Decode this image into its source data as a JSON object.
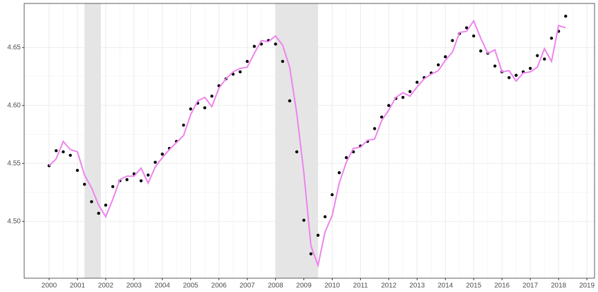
{
  "chart_data": {
    "type": "scatter",
    "x": [
      2000,
      2000.25,
      2000.5,
      2000.75,
      2001,
      2001.25,
      2001.5,
      2001.75,
      2002,
      2002.25,
      2002.5,
      2002.75,
      2003,
      2003.25,
      2003.5,
      2003.75,
      2004,
      2004.25,
      2004.5,
      2004.75,
      2005,
      2005.25,
      2005.5,
      2005.75,
      2006,
      2006.25,
      2006.5,
      2006.75,
      2007,
      2007.25,
      2007.5,
      2007.75,
      2008,
      2008.25,
      2008.5,
      2008.75,
      2009,
      2009.25,
      2009.5,
      2009.75,
      2010,
      2010.25,
      2010.5,
      2010.75,
      2011,
      2011.25,
      2011.5,
      2011.75,
      2012,
      2012.25,
      2012.5,
      2012.75,
      2013,
      2013.25,
      2013.5,
      2013.75,
      2014,
      2014.25,
      2014.5,
      2014.75,
      2015,
      2015.25,
      2015.5,
      2015.75,
      2016,
      2016.25,
      2016.5,
      2016.75,
      2017,
      2017.25,
      2017.5,
      2017.75,
      2018,
      2018.25
    ],
    "series": [
      {
        "type": "scatter",
        "color": "#000000",
        "values": [
          4.548,
          4.561,
          4.56,
          4.557,
          4.544,
          4.532,
          4.517,
          4.507,
          4.514,
          4.53,
          4.535,
          4.536,
          4.541,
          4.535,
          4.54,
          4.551,
          4.558,
          4.563,
          4.569,
          4.583,
          4.597,
          4.602,
          4.598,
          4.608,
          4.617,
          4.623,
          4.627,
          4.629,
          4.638,
          4.651,
          4.653,
          4.656,
          4.653,
          4.638,
          4.604,
          4.56,
          4.501,
          4.472,
          4.488,
          4.504,
          4.523,
          4.542,
          4.555,
          4.56,
          4.565,
          4.569,
          4.58,
          4.59,
          4.6,
          4.606,
          4.607,
          4.612,
          4.62,
          4.624,
          4.628,
          4.635,
          4.642,
          4.656,
          4.662,
          4.667,
          4.66,
          4.647,
          4.645,
          4.634,
          4.629,
          4.624,
          4.626,
          4.629,
          4.632,
          4.643,
          4.64,
          4.658,
          4.664,
          4.677
        ]
      },
      {
        "type": "line",
        "color": "#ee82ee",
        "values": [
          4.548,
          4.554,
          4.569,
          4.562,
          4.56,
          4.54,
          4.529,
          4.514,
          4.504,
          4.519,
          4.536,
          4.539,
          4.539,
          4.546,
          4.533,
          4.547,
          4.555,
          4.562,
          4.568,
          4.574,
          4.592,
          4.604,
          4.607,
          4.599,
          4.615,
          4.623,
          4.629,
          4.632,
          4.633,
          4.645,
          4.656,
          4.655,
          4.66,
          4.652,
          4.633,
          4.593,
          4.542,
          4.479,
          4.462,
          4.491,
          4.505,
          4.533,
          4.551,
          4.563,
          4.564,
          4.57,
          4.571,
          4.587,
          4.596,
          4.607,
          4.611,
          4.608,
          4.616,
          4.623,
          4.627,
          4.63,
          4.639,
          4.646,
          4.663,
          4.664,
          4.673,
          4.658,
          4.645,
          4.648,
          4.629,
          4.63,
          4.621,
          4.628,
          4.629,
          4.633,
          4.649,
          4.638,
          4.669,
          4.667
        ]
      }
    ],
    "shaded_regions": [
      [
        2001.25,
        2001.83
      ],
      [
        2008.0,
        2009.5
      ]
    ],
    "shade_color": "#e5e5e5",
    "xlim": [
      1999.12,
      2019.27
    ],
    "xticks": [
      2000,
      2001,
      2002,
      2003,
      2004,
      2005,
      2006,
      2007,
      2008,
      2009,
      2010,
      2011,
      2012,
      2013,
      2014,
      2015,
      2016,
      2017,
      2018,
      2019
    ],
    "ylim": [
      4.451,
      4.688
    ],
    "yticks": [
      {
        "value": 4.5,
        "label": "4.50"
      },
      4.55,
      {
        "value": 4.6,
        "label": "4.60"
      },
      4.65
    ],
    "grid": true
  }
}
